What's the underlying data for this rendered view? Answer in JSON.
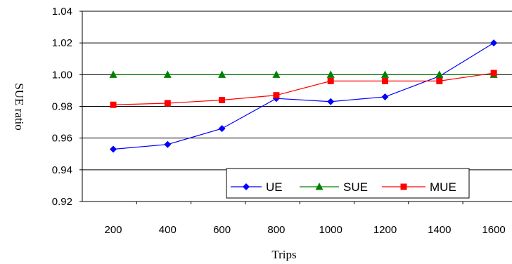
{
  "chart_data": {
    "type": "line",
    "title": "",
    "xlabel": "Trips",
    "ylabel": "SUE ratio",
    "x": [
      200,
      400,
      600,
      800,
      1000,
      1200,
      1400,
      1600
    ],
    "ylim": [
      0.92,
      1.04
    ],
    "yticks": [
      "0.92",
      "0.94",
      "0.96",
      "0.98",
      "1.00",
      "1.02",
      "1.04"
    ],
    "grid": "horizontal",
    "legend": "bottom-right",
    "series": [
      {
        "name": "UE",
        "marker": "diamond",
        "color": "#0000ff",
        "values": [
          0.953,
          0.956,
          0.966,
          0.985,
          0.983,
          0.986,
          0.999,
          1.02
        ]
      },
      {
        "name": "SUE",
        "marker": "triangle",
        "color": "#008000",
        "values": [
          1.0,
          1.0,
          1.0,
          1.0,
          1.0,
          1.0,
          1.0,
          1.0
        ]
      },
      {
        "name": "MUE",
        "marker": "square",
        "color": "#ff0000",
        "values": [
          0.981,
          0.982,
          0.984,
          0.987,
          0.996,
          0.996,
          0.996,
          1.001
        ]
      }
    ]
  }
}
